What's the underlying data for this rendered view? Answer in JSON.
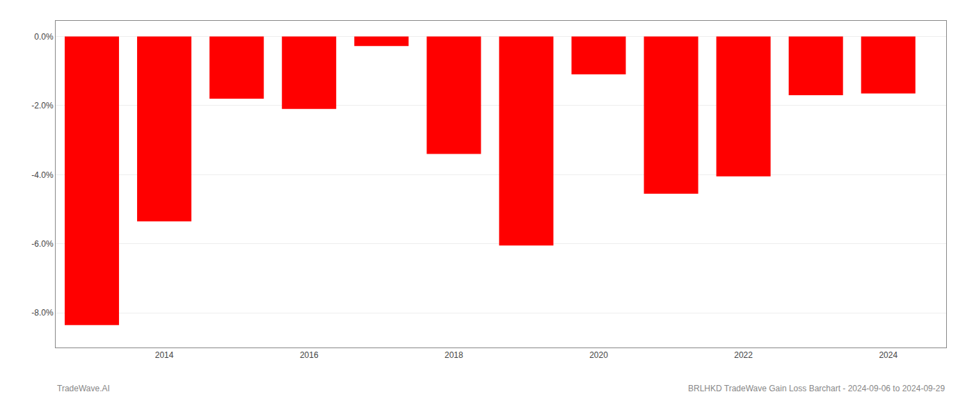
{
  "chart_data": {
    "type": "bar",
    "x": [
      2013,
      2014,
      2015,
      2016,
      2017,
      2018,
      2019,
      2020,
      2021,
      2022,
      2023,
      2024
    ],
    "values": [
      -8.35,
      -5.35,
      -1.8,
      -2.1,
      -0.28,
      -3.4,
      -6.05,
      -1.1,
      -4.55,
      -4.05,
      -1.7,
      -1.65
    ],
    "color": "#ff0000",
    "xlim": [
      2012.5,
      2024.8
    ],
    "xticks": [
      2014,
      2016,
      2018,
      2020,
      2022,
      2024
    ],
    "ylim": [
      -9.0,
      0.45
    ],
    "yticks": [
      {
        "value": 0.0,
        "label": "0.0%"
      },
      {
        "value": -2.0,
        "label": "-2.0%"
      },
      {
        "value": -4.0,
        "label": "-4.0%"
      },
      {
        "value": -6.0,
        "label": "-6.0%"
      },
      {
        "value": -8.0,
        "label": "-8.0%"
      }
    ],
    "grid": true,
    "annotations": [
      "TradeWave.AI",
      "BRLHKD TradeWave Gain Loss Barchart - 2024-09-06 to 2024-09-29"
    ]
  }
}
